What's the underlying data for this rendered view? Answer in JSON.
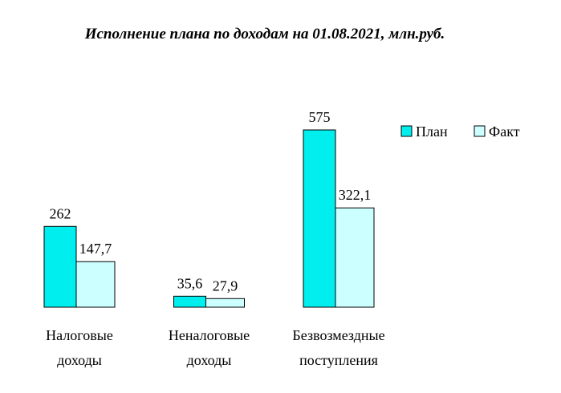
{
  "chart_data": {
    "type": "bar",
    "title": "Исполнение плана по доходам на 01.08.2021, млн.руб.",
    "categories": [
      "Налоговые доходы",
      "Неналоговые доходы",
      "Безвозмездные поступления"
    ],
    "series": [
      {
        "name": "План",
        "color": "#00eeee",
        "values": [
          262,
          35.6,
          575
        ],
        "value_labels": [
          "262",
          "35,6",
          "575"
        ]
      },
      {
        "name": "Факт",
        "color": "#ccffff",
        "values": [
          147.7,
          27.9,
          322.1
        ],
        "value_labels": [
          "147,7",
          "27,9",
          "322,1"
        ]
      }
    ],
    "legend": "right"
  }
}
